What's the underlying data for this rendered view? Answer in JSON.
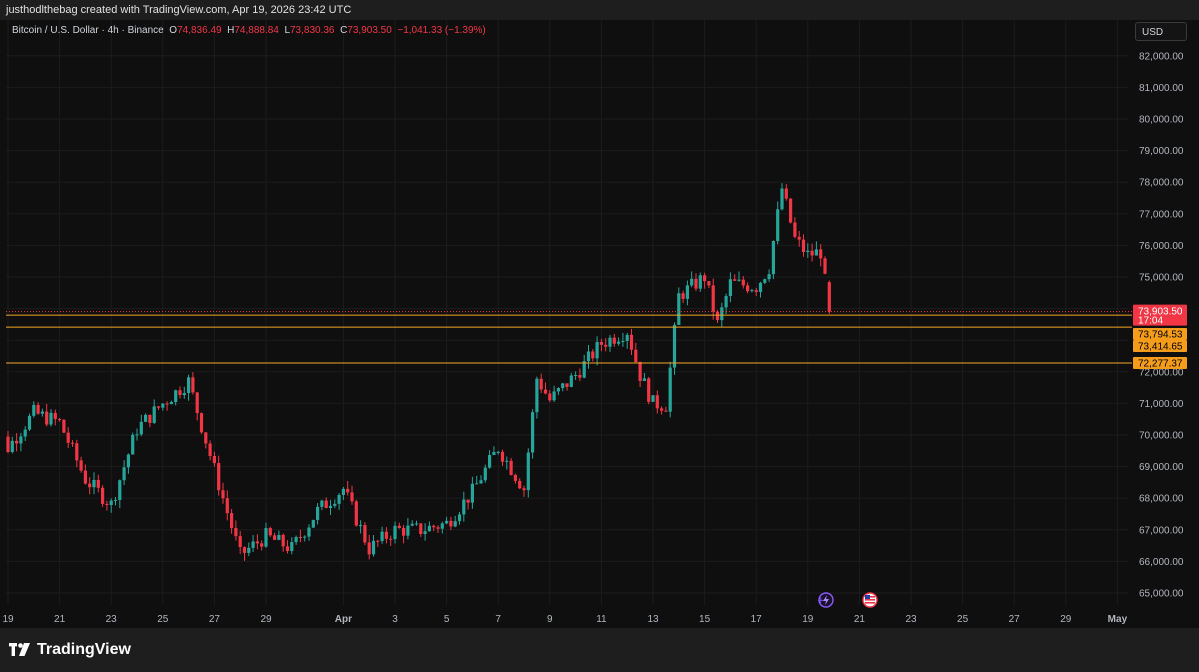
{
  "header": {
    "attribution": "justhodlthebag created with TradingView.com, Apr 19, 2026 23:42 UTC"
  },
  "legend": {
    "symbol": "Bitcoin / U.S. Dollar · 4h · Binance",
    "open_label": "O",
    "open": "74,836.49",
    "high_label": "H",
    "high": "74,888.84",
    "low_label": "L",
    "low": "73,830.36",
    "close_label": "C",
    "close": "73,903.50",
    "change": "−1,041.33 (−1.39%)"
  },
  "currency_button": "USD",
  "brand": {
    "name": "TradingView"
  },
  "colors": {
    "up": "#26a69a",
    "down": "#f23645",
    "level_line": "#f5a623",
    "last_price_bg": "#f23645",
    "level_bg": "#f59c1a"
  },
  "icons": [
    "lightning-event-icon",
    "us-flag-event-icon",
    "tradingview-logo-icon"
  ],
  "chart_data": {
    "type": "candlestick",
    "title": "",
    "y_axis": {
      "range": [
        64700,
        82600
      ],
      "ticks": [
        65000,
        66000,
        67000,
        68000,
        69000,
        70000,
        71000,
        72000,
        73000,
        74000,
        75000,
        76000,
        77000,
        78000,
        79000,
        80000,
        81000,
        82000
      ],
      "tick_labels": [
        "65,000.00",
        "66,000.00",
        "67,000.00",
        "68,000.00",
        "69,000.00",
        "70,000.00",
        "71,000.00",
        "72,000.00",
        "73,000.00",
        "74,000.00",
        "75,000.00",
        "76,000.00",
        "77,000.00",
        "78,000.00",
        "79,000.00",
        "80,000.00",
        "81,000.00",
        "82,000.00"
      ]
    },
    "x_axis": {
      "range_days": [
        "Mar 18 12:00",
        "May 1 04:00"
      ],
      "ticks": [
        {
          "date": "2026-03-19",
          "label": "19"
        },
        {
          "date": "2026-03-21",
          "label": "21"
        },
        {
          "date": "2026-03-23",
          "label": "23"
        },
        {
          "date": "2026-03-25",
          "label": "25"
        },
        {
          "date": "2026-03-27",
          "label": "27"
        },
        {
          "date": "2026-03-29",
          "label": "29"
        },
        {
          "date": "2026-04-01",
          "label": "Apr"
        },
        {
          "date": "2026-04-03",
          "label": "3"
        },
        {
          "date": "2026-04-05",
          "label": "5"
        },
        {
          "date": "2026-04-07",
          "label": "7"
        },
        {
          "date": "2026-04-09",
          "label": "9"
        },
        {
          "date": "2026-04-11",
          "label": "11"
        },
        {
          "date": "2026-04-13",
          "label": "13"
        },
        {
          "date": "2026-04-15",
          "label": "15"
        },
        {
          "date": "2026-04-17",
          "label": "17"
        },
        {
          "date": "2026-04-19",
          "label": "19"
        },
        {
          "date": "2026-04-21",
          "label": "21"
        },
        {
          "date": "2026-04-23",
          "label": "23"
        },
        {
          "date": "2026-04-25",
          "label": "25"
        },
        {
          "date": "2026-04-27",
          "label": "27"
        },
        {
          "date": "2026-04-29",
          "label": "29"
        },
        {
          "date": "2026-05-01",
          "label": "May"
        }
      ]
    },
    "timeframe": "4h",
    "anchors": [
      {
        "date": "2026-03-18",
        "price": 71200
      },
      {
        "date": "2026-03-19",
        "price": 69600
      },
      {
        "date": "2026-03-20",
        "price": 70700
      },
      {
        "date": "2026-03-21",
        "price": 70400
      },
      {
        "date": "2026-03-22",
        "price": 68600
      },
      {
        "date": "2026-03-23",
        "price": 67800
      },
      {
        "date": "2026-03-24",
        "price": 70200
      },
      {
        "date": "2026-03-25",
        "price": 71000
      },
      {
        "date": "2026-03-26",
        "price": 71700
      },
      {
        "date": "2026-03-27",
        "price": 68900
      },
      {
        "date": "2026-03-28",
        "price": 66200
      },
      {
        "date": "2026-03-29",
        "price": 66800
      },
      {
        "date": "2026-03-30",
        "price": 66400
      },
      {
        "date": "2026-03-31",
        "price": 67600
      },
      {
        "date": "2026-04-01",
        "price": 68300
      },
      {
        "date": "2026-04-02",
        "price": 66400
      },
      {
        "date": "2026-04-03",
        "price": 67000
      },
      {
        "date": "2026-04-04",
        "price": 67000
      },
      {
        "date": "2026-04-05",
        "price": 67200
      },
      {
        "date": "2026-04-06",
        "price": 68200
      },
      {
        "date": "2026-04-07",
        "price": 69600
      },
      {
        "date": "2026-04-08",
        "price": 68300
      },
      {
        "date": "2026-04-08 12:00",
        "price": 71800
      },
      {
        "date": "2026-04-09",
        "price": 71100
      },
      {
        "date": "2026-04-10",
        "price": 71900
      },
      {
        "date": "2026-04-11",
        "price": 72900
      },
      {
        "date": "2026-04-12",
        "price": 73300
      },
      {
        "date": "2026-04-12 12:00",
        "price": 71900
      },
      {
        "date": "2026-04-13",
        "price": 71000
      },
      {
        "date": "2026-04-13 12:00",
        "price": 70950
      },
      {
        "date": "2026-04-14",
        "price": 74400
      },
      {
        "date": "2026-04-15",
        "price": 75000
      },
      {
        "date": "2026-04-15 12:00",
        "price": 73500
      },
      {
        "date": "2026-04-16",
        "price": 74800
      },
      {
        "date": "2026-04-17",
        "price": 74700
      },
      {
        "date": "2026-04-17 12:00",
        "price": 75300
      },
      {
        "date": "2026-04-18",
        "price": 77800
      },
      {
        "date": "2026-04-18 12:00",
        "price": 76200
      },
      {
        "date": "2026-04-19",
        "price": 75700
      },
      {
        "date": "2026-04-19 12:00",
        "price": 75800
      },
      {
        "date": "2026-04-19 20:00",
        "price": 73903.5
      }
    ],
    "horizontal_levels": [
      73903.5,
      73794.53,
      73414.65,
      72277.37
    ],
    "price_tags": [
      {
        "label": "73,903.50",
        "sub": "17:04",
        "kind": "last_price"
      },
      {
        "label": "73,794.53",
        "kind": "level"
      },
      {
        "label": "73,414.65",
        "kind": "level"
      },
      {
        "label": "72,277.37",
        "kind": "level"
      }
    ],
    "last_ohlc": {
      "open": 74836.49,
      "high": 74888.84,
      "low": 73830.36,
      "close": 73903.5
    }
  }
}
